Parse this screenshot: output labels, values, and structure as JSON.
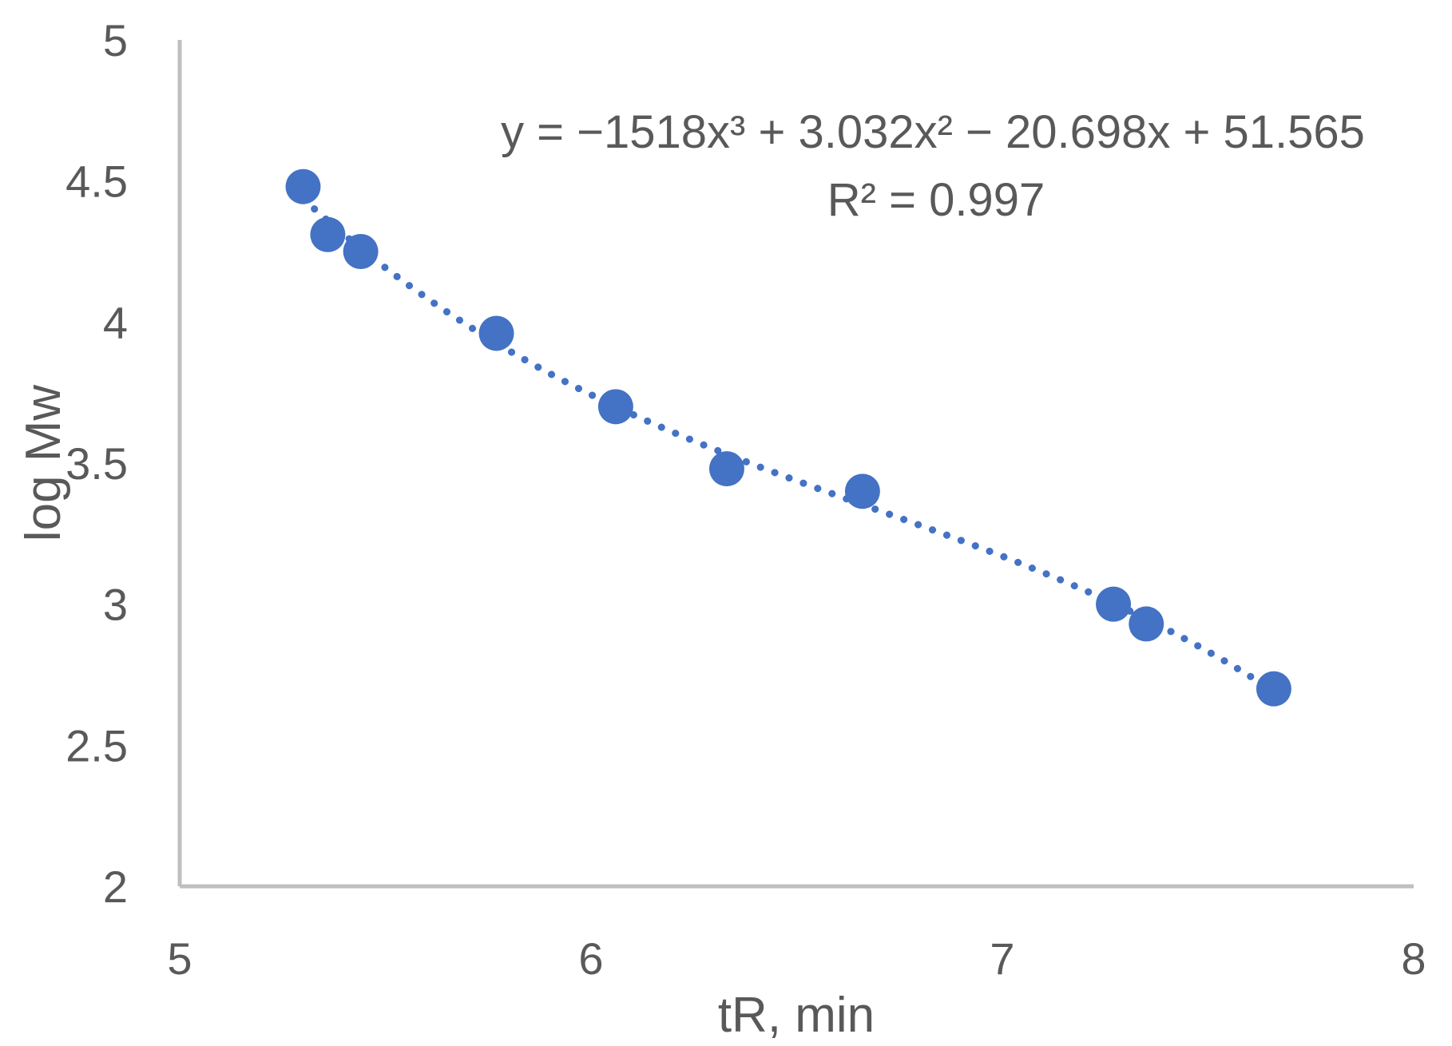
{
  "chart_data": {
    "type": "scatter",
    "title": "",
    "xlabel": "tR, min",
    "ylabel": "log Mw",
    "xlim": [
      5,
      8
    ],
    "ylim": [
      2,
      5
    ],
    "x_ticks": [
      "5",
      "6",
      "7",
      "8"
    ],
    "y_ticks": [
      "2",
      "2.5",
      "3",
      "3.5",
      "4",
      "4.5",
      "5"
    ],
    "grid": false,
    "legend": "none",
    "series": [
      {
        "marker_color": "#4472C4",
        "points": [
          {
            "x": 5.3,
            "y": 4.48
          },
          {
            "x": 5.36,
            "y": 4.31
          },
          {
            "x": 5.44,
            "y": 4.25
          },
          {
            "x": 5.77,
            "y": 3.96
          },
          {
            "x": 6.06,
            "y": 3.7
          },
          {
            "x": 6.33,
            "y": 3.48
          },
          {
            "x": 6.66,
            "y": 3.4
          },
          {
            "x": 7.27,
            "y": 3.0
          },
          {
            "x": 7.35,
            "y": 2.93
          },
          {
            "x": 7.66,
            "y": 2.7
          }
        ]
      }
    ],
    "trendline": {
      "type": "polynomial",
      "order": 3,
      "style": "dotted",
      "color": "#4472C4",
      "equation_label": "y = −1518x³ + 3.032x² − 20.698x + 51.565",
      "r2_label": "R² = 0.997"
    },
    "axis_color": "#BFBFBF",
    "text_color": "#595959"
  }
}
